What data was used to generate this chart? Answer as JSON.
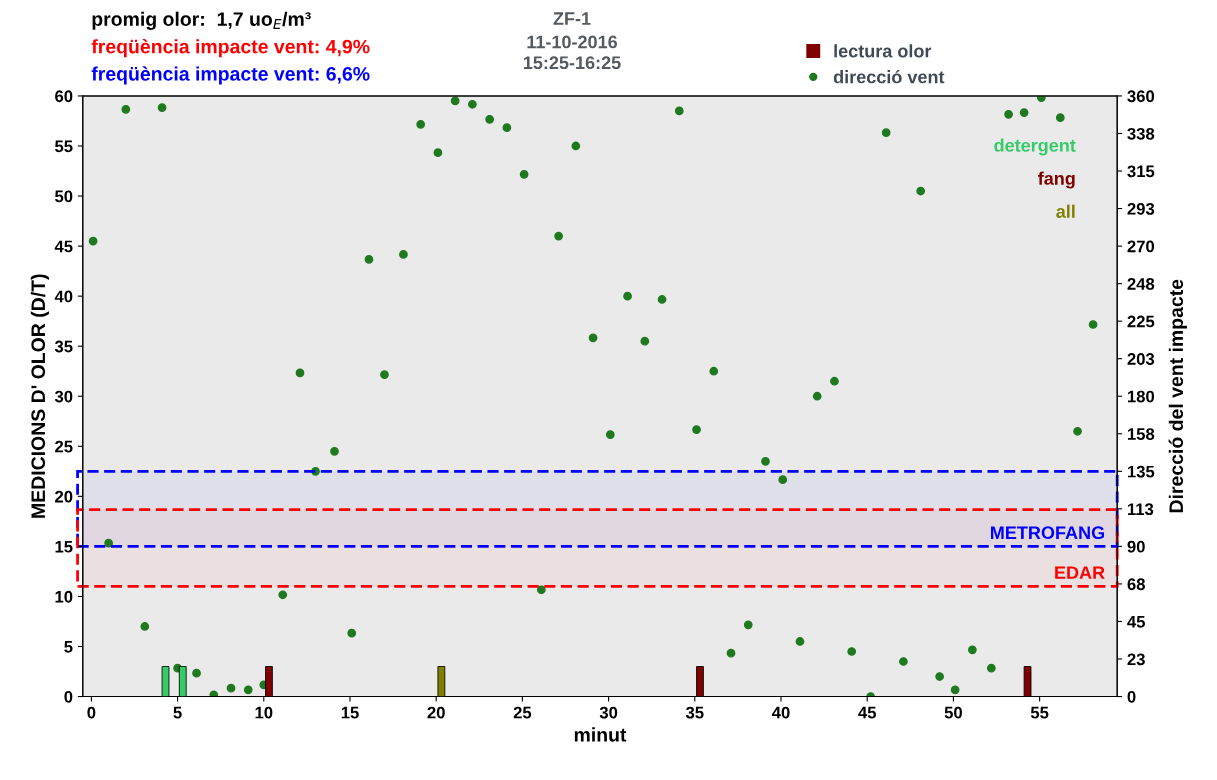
{
  "chart_data": {
    "type": "bar",
    "title": "ZF-1",
    "subtitle": "11-10-2016\n15:25-16:25",
    "xlabel": "minut",
    "ylabel": "MEDICIONS D' OLOR (D/T)",
    "y2label": "Direcció del vent impacte",
    "annotations": [
      "promig olor:  1,7 uo$_{E}$/m³",
      "freqüència impacte vent: 4,9%",
      "freqüència impacte vent: 6,6%"
    ],
    "legend_title": "lectura olor",
    "xlim": [
      -0.5,
      59.5
    ],
    "xticks": [
      0,
      5,
      10,
      15,
      20,
      25,
      30,
      35,
      40,
      45,
      50,
      55
    ],
    "ylim": [
      0,
      60
    ],
    "yticks": [
      0,
      5,
      10,
      15,
      20,
      25,
      30,
      35,
      40,
      45,
      50,
      55,
      60
    ],
    "y2lim": [
      0,
      360
    ],
    "y2ticks": [
      0,
      {
        "value": 22.5,
        "label": "23"
      },
      45,
      {
        "value": 67.5,
        "label": "68"
      },
      90,
      {
        "value": 112.5,
        "label": "113"
      },
      135,
      {
        "value": 157.5,
        "label": "158"
      },
      180,
      {
        "value": 202.5,
        "label": "203"
      },
      225,
      {
        "value": 247.5,
        "label": "248"
      },
      270,
      {
        "value": 292.5,
        "label": "293"
      },
      315,
      {
        "value": 337.5,
        "label": "338"
      },
      360
    ],
    "bands": [
      {
        "axis": "y2",
        "from": 90,
        "to": 135,
        "label": "METROFANG",
        "color": "#0000ff"
      },
      {
        "axis": "y2",
        "from": 66,
        "to": 112,
        "label": "EDAR",
        "color": "#ff0000"
      }
    ],
    "grid": false,
    "legend": "top right",
    "series": [
      {
        "name": "detergent",
        "color": "#33cc66",
        "x": [
          4.3,
          5.3
        ],
        "values": [
          3,
          3
        ]
      },
      {
        "name": "fang",
        "color": "#800000",
        "x": [
          10.3,
          35.3,
          54.3
        ],
        "values": [
          3,
          3,
          3
        ]
      },
      {
        "name": "all",
        "color": "#808000",
        "x": [
          20.3
        ],
        "values": [
          3
        ]
      },
      {
        "name": "direcció vent",
        "type": "scatter",
        "axis": "y2",
        "color": "#1f7a1f",
        "marker": "circle",
        "x": [
          0.1,
          1.0,
          2.0,
          3.1,
          4.1,
          5.0,
          6.1,
          7.1,
          8.1,
          9.1,
          10.0,
          11.1,
          12.1,
          13.0,
          14.1,
          15.1,
          16.1,
          17.0,
          18.1,
          19.1,
          20.1,
          21.1,
          22.1,
          23.1,
          24.1,
          25.1,
          26.1,
          27.1,
          28.1,
          29.1,
          30.1,
          31.1,
          32.1,
          33.1,
          34.1,
          35.1,
          36.1,
          37.1,
          38.1,
          39.1,
          40.1,
          41.1,
          42.1,
          43.1,
          44.1,
          45.2,
          46.1,
          47.1,
          48.1,
          49.2,
          50.1,
          51.1,
          52.2,
          53.2,
          54.1,
          55.1,
          56.2,
          57.2,
          58.1
        ],
        "values": [
          273,
          92,
          352,
          42,
          353,
          17,
          14,
          1,
          5,
          4,
          7,
          61,
          194,
          135,
          147,
          38,
          262,
          193,
          265,
          343,
          326,
          357,
          355,
          346,
          341,
          313,
          64,
          276,
          330,
          215,
          157,
          240,
          213,
          238,
          351,
          160,
          195,
          26,
          43,
          141,
          130,
          33,
          180,
          189,
          27,
          0,
          338,
          21,
          303,
          12,
          4,
          28,
          17,
          349,
          350,
          359,
          347,
          159,
          223
        ]
      }
    ]
  }
}
